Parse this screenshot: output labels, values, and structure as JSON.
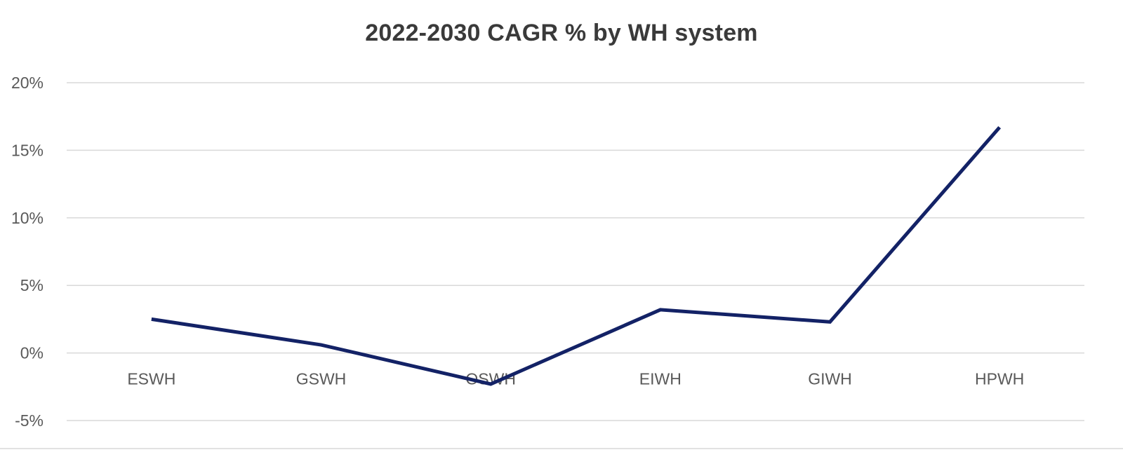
{
  "chart_data": {
    "type": "line",
    "title": "2022-2030 CAGR % by WH system",
    "xlabel": "",
    "ylabel": "",
    "categories": [
      "ESWH",
      "GSWH",
      "OSWH",
      "EIWH",
      "GIWH",
      "HPWH"
    ],
    "series": [
      {
        "values": [
          2.5,
          0.6,
          -2.3,
          3.2,
          2.3,
          16.7
        ]
      }
    ],
    "ylim": [
      -5,
      20
    ],
    "yticks": [
      -5,
      0,
      5,
      10,
      15,
      20
    ],
    "ytick_labels": [
      "-5%",
      "0%",
      "5%",
      "10%",
      "15%",
      "20%"
    ],
    "grid": true,
    "legend": "none",
    "colors": {
      "line": "#132266",
      "grid": "#d9d9d9",
      "tick_text": "#595959",
      "title_text": "#3a3a3a"
    }
  }
}
